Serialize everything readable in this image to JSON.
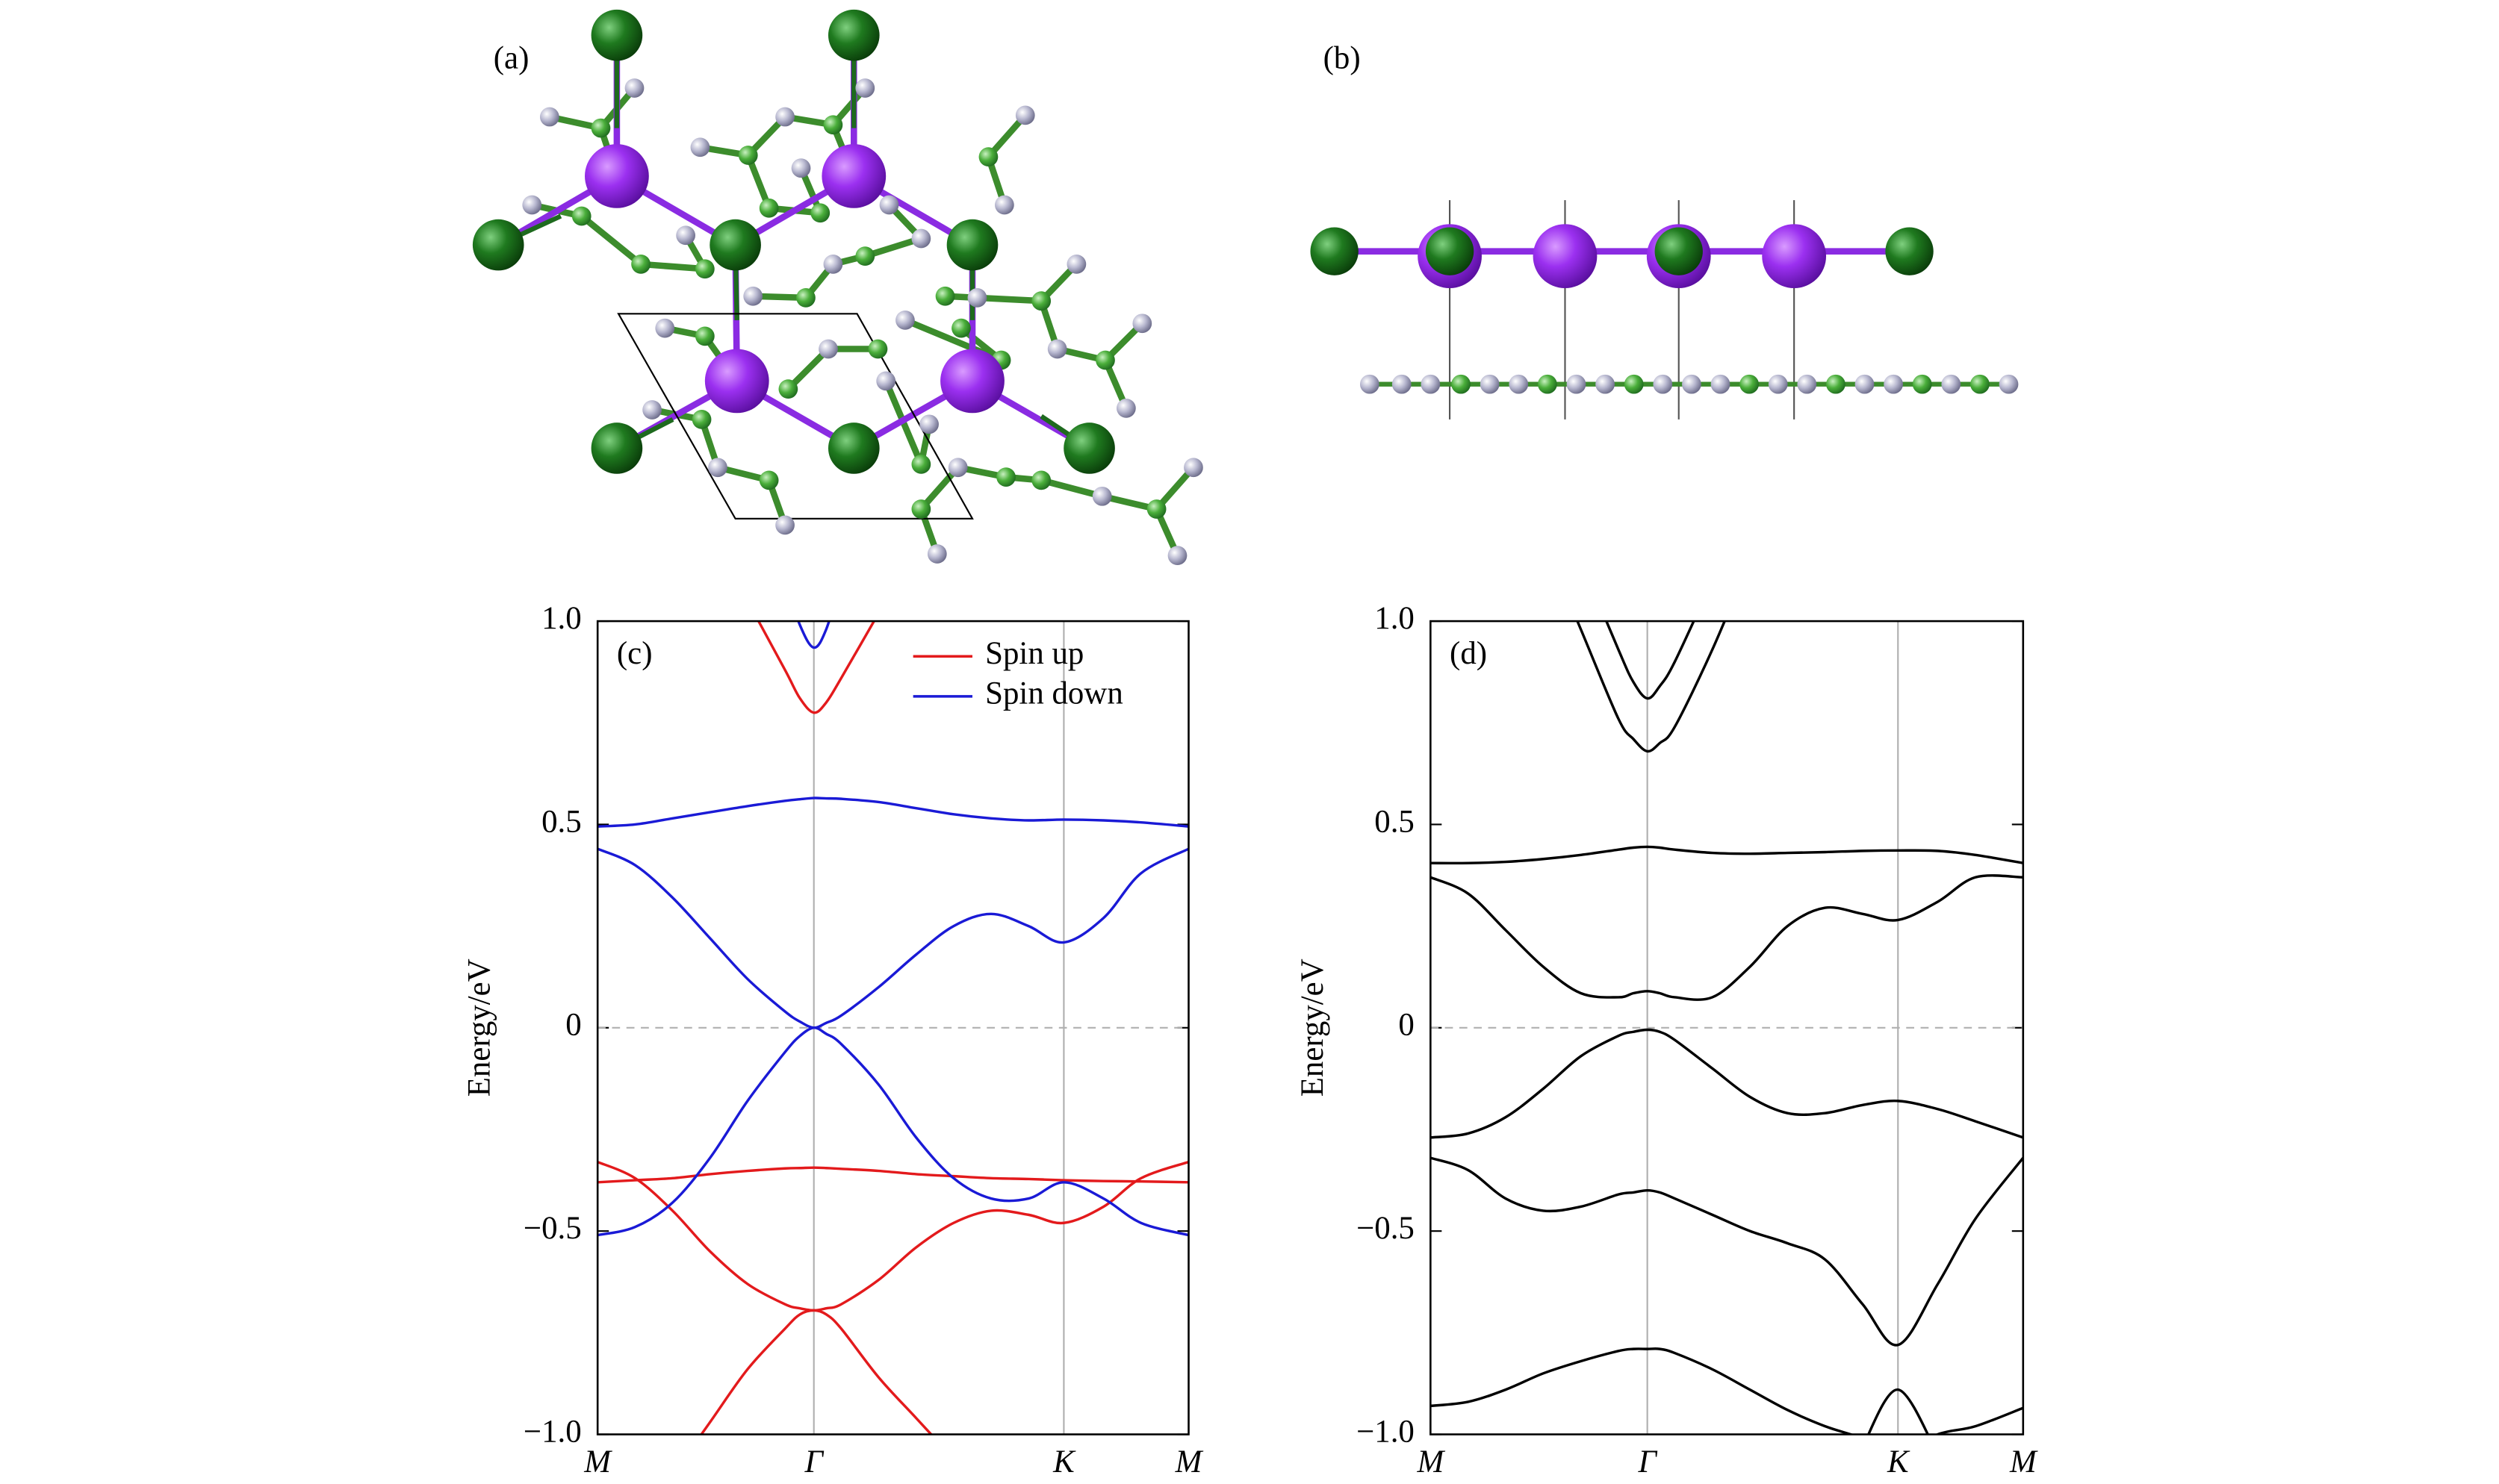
{
  "panel_labels": [
    "(a)",
    "(b)"
  ],
  "chart_data": [
    {
      "type": "line",
      "label": "(c)",
      "ylabel": "Energy/eV",
      "x": [
        0,
        0.1,
        0.2,
        0.3,
        0.4,
        0.5,
        0.54,
        0.577,
        0.61,
        0.65,
        0.75,
        0.85,
        0.95,
        1.05,
        1.15,
        1.244,
        1.35,
        1.45,
        1.577
      ],
      "xlim": [
        0,
        1.577
      ],
      "xticks": [
        {
          "value": 0,
          "label": "M"
        },
        {
          "value": 0.577,
          "label": "Γ"
        },
        {
          "value": 1.244,
          "label": "K"
        },
        {
          "value": 1.577,
          "label": "M"
        }
      ],
      "ylim": [
        -1,
        1
      ],
      "yticks": [
        {
          "value": -1,
          "label": "−1.0"
        },
        {
          "value": -0.5,
          "label": "−0.5"
        },
        0,
        0.5,
        {
          "value": 1,
          "label": "1.0"
        }
      ],
      "xgrid": true,
      "zero_line": true,
      "legend": "upper right",
      "series": [
        {
          "name": "Spin up",
          "color": "#e31a1c",
          "values": [
            -0.38,
            -0.375,
            -0.37,
            -0.36,
            -0.352,
            -0.346,
            -0.345,
            -0.344,
            -0.345,
            -0.347,
            -0.352,
            -0.36,
            -0.365,
            -0.37,
            -0.372,
            -0.375,
            -0.377,
            -0.378,
            -0.38
          ]
        },
        {
          "color": "#e31a1c",
          "values": [
            -0.33,
            -0.37,
            -0.45,
            -0.55,
            -0.63,
            -0.68,
            -0.69,
            -0.695,
            -0.69,
            -0.68,
            -0.62,
            -0.54,
            -0.48,
            -0.45,
            -0.46,
            -0.48,
            -0.44,
            -0.37,
            -0.33
          ]
        },
        {
          "color": "#e31a1c",
          "values": [
            null,
            null,
            -1.1,
            -0.97,
            -0.84,
            -0.74,
            -0.705,
            -0.695,
            -0.705,
            -0.74,
            -0.86,
            -0.96,
            -1.06,
            null,
            null,
            null,
            null,
            null,
            null
          ]
        },
        {
          "color": "#e31a1c",
          "values": [
            null,
            null,
            null,
            null,
            1.05,
            0.88,
            0.81,
            0.775,
            0.8,
            0.86,
            1.02,
            null,
            null,
            null,
            null,
            null,
            null,
            null,
            null
          ]
        },
        {
          "name": "Spin down",
          "color": "#1a1ad6",
          "values": [
            0.495,
            0.5,
            0.515,
            0.53,
            0.545,
            0.558,
            0.562,
            0.565,
            0.564,
            0.563,
            0.555,
            0.54,
            0.525,
            0.515,
            0.51,
            0.512,
            0.51,
            0.505,
            0.495
          ]
        },
        {
          "color": "#1a1ad6",
          "values": [
            0.44,
            0.4,
            0.32,
            0.22,
            0.12,
            0.04,
            0.015,
            0.0,
            0.012,
            0.03,
            0.1,
            0.18,
            0.25,
            0.28,
            0.25,
            0.21,
            0.27,
            0.38,
            0.44
          ]
        },
        {
          "color": "#1a1ad6",
          "values": [
            -0.51,
            -0.49,
            -0.43,
            -0.32,
            -0.18,
            -0.06,
            -0.02,
            0.0,
            -0.015,
            -0.04,
            -0.14,
            -0.27,
            -0.37,
            -0.42,
            -0.42,
            -0.38,
            -0.42,
            -0.48,
            -0.51
          ]
        },
        {
          "color": "#1a1ad6",
          "values": [
            null,
            null,
            null,
            null,
            null,
            1.1,
            0.99,
            0.935,
            0.98,
            1.1,
            null,
            null,
            null,
            null,
            null,
            null,
            null,
            null,
            null
          ]
        }
      ]
    },
    {
      "type": "line",
      "label": "(d)",
      "ylabel": "Energy/eV",
      "x": [
        0,
        0.1,
        0.2,
        0.3,
        0.4,
        0.5,
        0.54,
        0.577,
        0.61,
        0.65,
        0.75,
        0.85,
        0.95,
        1.05,
        1.15,
        1.244,
        1.35,
        1.45,
        1.577
      ],
      "xlim": [
        0,
        1.577
      ],
      "xticks": [
        {
          "value": 0,
          "label": "M"
        },
        {
          "value": 0.577,
          "label": "Γ"
        },
        {
          "value": 1.244,
          "label": "K"
        },
        {
          "value": 1.577,
          "label": "M"
        }
      ],
      "ylim": [
        -1,
        1
      ],
      "yticks": [
        {
          "value": -1,
          "label": "−1.0"
        },
        {
          "value": -0.5,
          "label": "−0.5"
        },
        0,
        0.5,
        {
          "value": 1,
          "label": "1.0"
        }
      ],
      "xgrid": true,
      "zero_line": true,
      "series": [
        {
          "color": "#000000",
          "values": [
            null,
            null,
            null,
            1.2,
            0.98,
            0.76,
            0.71,
            0.68,
            0.7,
            0.74,
            0.93,
            1.15,
            null,
            null,
            null,
            null,
            null,
            null,
            null
          ]
        },
        {
          "color": "#000000",
          "values": [
            null,
            null,
            null,
            null,
            1.15,
            0.93,
            0.85,
            0.81,
            0.84,
            0.9,
            1.1,
            null,
            null,
            null,
            null,
            null,
            null,
            null,
            null
          ]
        },
        {
          "color": "#000000",
          "values": [
            0.405,
            0.405,
            0.408,
            0.415,
            0.425,
            0.438,
            0.443,
            0.445,
            0.443,
            0.438,
            0.43,
            0.428,
            0.43,
            0.432,
            0.435,
            0.436,
            0.435,
            0.425,
            0.405
          ]
        },
        {
          "color": "#000000",
          "values": [
            0.37,
            0.33,
            0.24,
            0.15,
            0.085,
            0.075,
            0.085,
            0.09,
            0.085,
            0.075,
            0.075,
            0.15,
            0.25,
            0.295,
            0.28,
            0.265,
            0.31,
            0.37,
            0.37
          ]
        },
        {
          "color": "#000000",
          "values": [
            -0.27,
            -0.26,
            -0.22,
            -0.15,
            -0.07,
            -0.02,
            -0.01,
            -0.005,
            -0.01,
            -0.03,
            -0.1,
            -0.17,
            -0.21,
            -0.21,
            -0.19,
            -0.18,
            -0.2,
            -0.23,
            -0.27
          ]
        },
        {
          "color": "#000000",
          "values": [
            -0.32,
            -0.35,
            -0.42,
            -0.45,
            -0.44,
            -0.41,
            -0.405,
            -0.4,
            -0.405,
            -0.42,
            -0.46,
            -0.5,
            -0.53,
            -0.57,
            -0.68,
            -0.78,
            -0.63,
            -0.47,
            -0.32
          ]
        },
        {
          "color": "#000000",
          "values": [
            -0.93,
            -0.92,
            -0.89,
            -0.85,
            -0.82,
            -0.795,
            -0.79,
            -0.79,
            -0.79,
            -0.8,
            -0.84,
            -0.89,
            -0.94,
            -0.98,
            -1.01,
            -1.05,
            -1.0,
            -0.98,
            -0.935
          ]
        },
        {
          "color": "#000000",
          "values": [
            null,
            null,
            null,
            null,
            null,
            null,
            null,
            null,
            null,
            null,
            null,
            null,
            null,
            null,
            -1.03,
            -0.89,
            -1.05,
            null,
            null
          ]
        }
      ]
    }
  ]
}
